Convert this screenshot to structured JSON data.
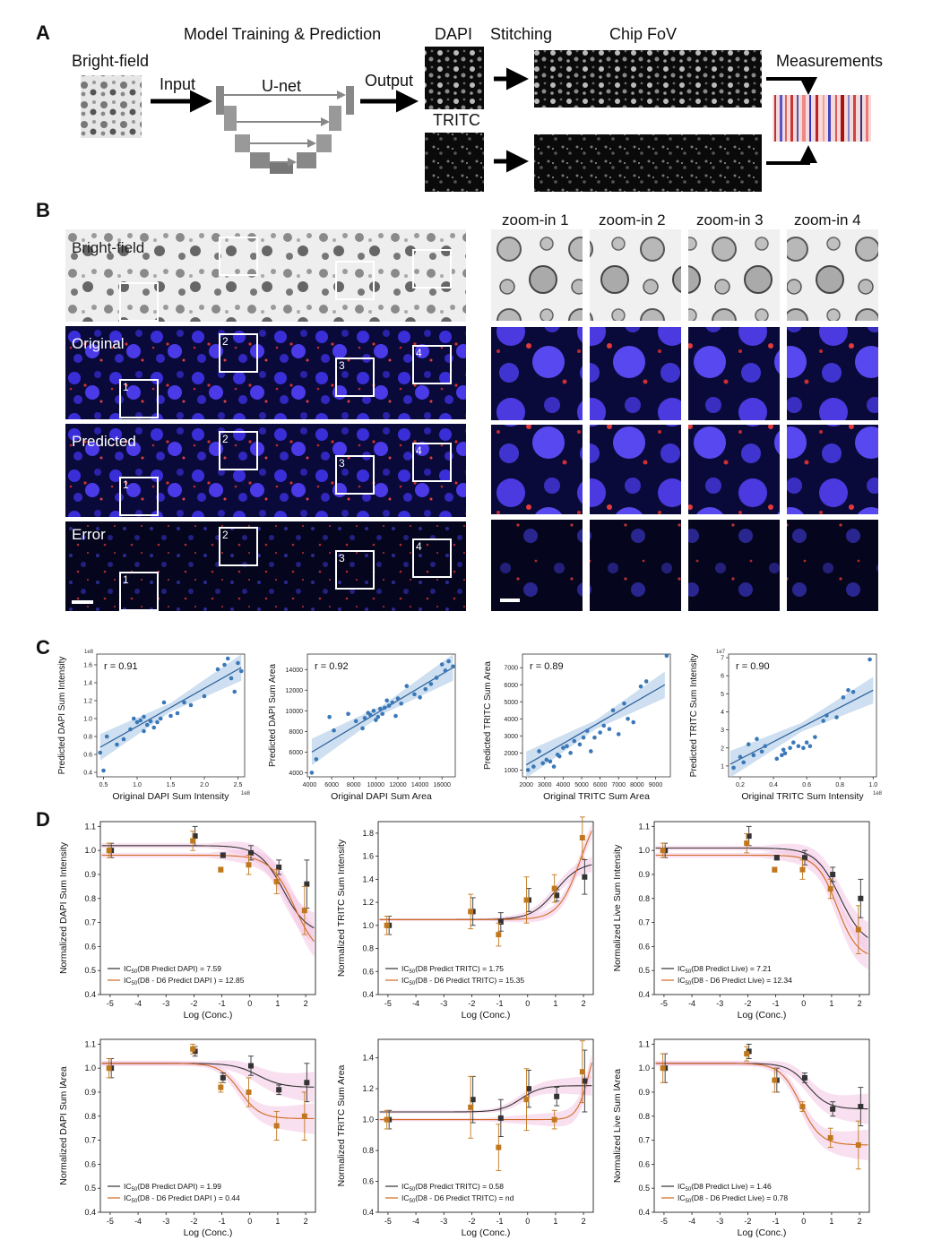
{
  "panels": {
    "a": "A",
    "b": "B",
    "c": "C",
    "d": "D"
  },
  "panel_a": {
    "model_title": "Model Training & Prediction",
    "brightfield": "Bright-field",
    "input": "Input",
    "unet": "U-net",
    "output": "Output",
    "dapi": "DAPI",
    "tritc": "TRITC",
    "stitching": "Stitching",
    "chip_fov": "Chip FoV",
    "measurements": "Measurements"
  },
  "panel_b": {
    "rows": [
      "Bright-field",
      "Original",
      "Predicted",
      "Error"
    ],
    "box_numbers": [
      "1",
      "2",
      "3",
      "4"
    ],
    "zoom_titles": [
      "zoom-in 1",
      "zoom-in 2",
      "zoom-in 3",
      "zoom-in 4"
    ]
  },
  "colors": {
    "scatter_point": "#3a78b8",
    "fit_band": "#b8d2ea",
    "d8_curve": "#333333",
    "d6_curve": "#d2691e",
    "d6_marker": "#c0781f",
    "error_band": "#f4c7e4",
    "fluor_bg": "#0a0a3a"
  },
  "chart_data": [
    {
      "type": "scatter",
      "id": "c1",
      "r_label": "r = 0.91",
      "xlabel": "Original DAPI Sum Intensity",
      "ylabel": "Predicted DAPI Sum Intensity",
      "x_exponent": "1e8",
      "y_exponent": "1e8",
      "xticks": [
        "0.5",
        "1.0",
        "1.5",
        "2.0",
        "2.5"
      ],
      "yticks": [
        "0.4",
        "0.6",
        "0.8",
        "1.0",
        "1.2",
        "1.4",
        "1.6"
      ],
      "xlim": [
        0.4,
        2.6
      ],
      "ylim": [
        0.35,
        1.72
      ],
      "fit": [
        [
          0.45,
          0.68
        ],
        [
          2.55,
          1.57
        ]
      ],
      "x": [
        0.45,
        0.5,
        0.55,
        0.7,
        0.8,
        0.9,
        0.95,
        1.0,
        1.05,
        1.1,
        1.1,
        1.15,
        1.2,
        1.25,
        1.3,
        1.35,
        1.4,
        1.5,
        1.6,
        1.7,
        1.8,
        2.0,
        2.2,
        2.3,
        2.35,
        2.4,
        2.45,
        2.5,
        2.55
      ],
      "y": [
        0.62,
        0.42,
        0.8,
        0.71,
        0.77,
        0.88,
        1.0,
        0.96,
        0.98,
        0.86,
        1.02,
        0.93,
        0.97,
        0.9,
        0.96,
        1.0,
        1.18,
        1.03,
        1.06,
        1.18,
        1.15,
        1.25,
        1.55,
        1.6,
        1.67,
        1.45,
        1.3,
        1.62,
        1.53
      ]
    },
    {
      "type": "scatter",
      "id": "c2",
      "r_label": "r = 0.92",
      "xlabel": "Original DAPI Sum Area",
      "ylabel": "Predicted DAPI Sum Area",
      "xticks": [
        "4000",
        "6000",
        "8000",
        "10000",
        "12000",
        "14000",
        "16000"
      ],
      "yticks": [
        "4000",
        "6000",
        "8000",
        "10000",
        "12000",
        "14000"
      ],
      "xlim": [
        3800,
        17200
      ],
      "ylim": [
        3600,
        15500
      ],
      "fit": [
        [
          4200,
          6000
        ],
        [
          17000,
          14200
        ]
      ],
      "x": [
        4200,
        4600,
        5800,
        6200,
        7500,
        8200,
        8800,
        9000,
        9300,
        9500,
        9800,
        10000,
        10200,
        10400,
        10600,
        10800,
        11000,
        11200,
        11500,
        11800,
        12000,
        12300,
        12800,
        13500,
        14000,
        14500,
        15000,
        15500,
        16000,
        16300,
        16600,
        17000
      ],
      "y": [
        4000,
        5300,
        9400,
        8100,
        9700,
        9000,
        8300,
        9300,
        9800,
        9600,
        10000,
        9100,
        9400,
        10200,
        9700,
        10300,
        11000,
        10500,
        10800,
        9500,
        11200,
        10700,
        12400,
        11600,
        11300,
        12100,
        12600,
        13200,
        14500,
        13900,
        14800,
        14300
      ]
    },
    {
      "type": "scatter",
      "id": "c3",
      "r_label": "r = 0.89",
      "xlabel": "Original TRITC Sum Area",
      "ylabel": "Predicted TRITC Sum Area",
      "xticks": [
        "2000",
        "3000",
        "4000",
        "5000",
        "6000",
        "7000",
        "8000",
        "9000"
      ],
      "yticks": [
        "1000",
        "2000",
        "3000",
        "4000",
        "5000",
        "6000",
        "7000"
      ],
      "xlim": [
        1800,
        9800
      ],
      "ylim": [
        600,
        7800
      ],
      "fit": [
        [
          2000,
          1300
        ],
        [
          9500,
          6000
        ]
      ],
      "x": [
        2100,
        2400,
        2700,
        2900,
        3100,
        3300,
        3500,
        3700,
        3800,
        4000,
        4200,
        4400,
        4600,
        4900,
        5100,
        5300,
        5500,
        5700,
        6000,
        6200,
        6500,
        6700,
        7000,
        7300,
        7500,
        7800,
        8200,
        8500,
        9600
      ],
      "y": [
        1000,
        1200,
        2100,
        1400,
        1600,
        1500,
        1200,
        1900,
        1800,
        2300,
        2400,
        2000,
        2700,
        2500,
        2900,
        3300,
        2100,
        2900,
        3200,
        3600,
        3400,
        4500,
        3100,
        4900,
        4000,
        3800,
        5900,
        6200,
        7700
      ]
    },
    {
      "type": "scatter",
      "id": "c4",
      "r_label": "r = 0.90",
      "xlabel": "Original TRITC Sum Intensity",
      "ylabel": "Predicted TRITC Sum Intensity",
      "x_exponent": "1e8",
      "y_exponent": "1e7",
      "xticks": [
        "0.2",
        "0.4",
        "0.6",
        "0.8",
        "1.0"
      ],
      "yticks": [
        "1",
        "2",
        "3",
        "4",
        "5",
        "6",
        "7"
      ],
      "xlim": [
        0.13,
        1.02
      ],
      "ylim": [
        0.4,
        7.2
      ],
      "fit": [
        [
          0.14,
          1.1
        ],
        [
          1.0,
          5.2
        ]
      ],
      "x": [
        0.16,
        0.2,
        0.22,
        0.25,
        0.28,
        0.3,
        0.33,
        0.35,
        0.42,
        0.45,
        0.46,
        0.47,
        0.5,
        0.52,
        0.55,
        0.58,
        0.6,
        0.62,
        0.65,
        0.7,
        0.72,
        0.78,
        0.82,
        0.85,
        0.88,
        0.98
      ],
      "y": [
        0.9,
        1.5,
        1.2,
        2.2,
        1.6,
        2.5,
        1.8,
        2.1,
        1.4,
        1.6,
        1.9,
        1.7,
        2.0,
        2.3,
        2.1,
        2.0,
        2.3,
        2.1,
        2.6,
        3.5,
        3.8,
        3.7,
        4.8,
        5.2,
        5.1,
        6.9
      ]
    },
    {
      "type": "line",
      "id": "d1",
      "ylabel": "Normalized DAPI Sum Intensity",
      "xlabel": "Log (Conc.)",
      "xticks": [
        -5,
        -4,
        -3,
        -2,
        -1,
        0,
        1,
        2
      ],
      "yticks": [
        "0.4",
        "0.5",
        "0.6",
        "0.7",
        "0.8",
        "0.9",
        "1.0",
        "1.1"
      ],
      "xlim": [
        -5.35,
        2.35
      ],
      "ylim": [
        0.4,
        1.12
      ],
      "series": [
        {
          "name": "IC50(D8 Predict DAPI) = 7.59",
          "legend_main": "IC",
          "legend_sub": "50",
          "legend_rest": "(D8 Predict DAPI) = 7.59",
          "color": "#333333",
          "x": [
            -5,
            -2,
            -1,
            0,
            1,
            2
          ],
          "y": [
            1.0,
            1.06,
            0.98,
            0.99,
            0.93,
            0.86
          ],
          "err": [
            0.03,
            0.04,
            0.01,
            0.03,
            0.03,
            0.1
          ],
          "curve": {
            "top": 1.02,
            "bottom": 0.65,
            "logic50": 1.2,
            "hill": 1.0
          }
        },
        {
          "name": "IC50(D8 - D6 Predict DAPI ) = 12.85",
          "legend_main": "IC",
          "legend_sub": "50",
          "legend_rest": "(D8 - D6 Predict DAPI ) = 12.85",
          "color": "#c0781f",
          "x": [
            -5,
            -2,
            -1,
            0,
            1,
            2
          ],
          "y": [
            1.0,
            1.04,
            0.92,
            0.94,
            0.87,
            0.75
          ],
          "err": [
            0.03,
            0.04,
            0.01,
            0.04,
            0.05,
            0.1
          ],
          "curve": {
            "top": 0.98,
            "bottom": 0.55,
            "logic50": 1.6,
            "hill": 1.0
          }
        }
      ]
    },
    {
      "type": "line",
      "id": "d2",
      "ylabel": "Normalized TRITC Sum Intensity",
      "xlabel": "Log (Conc.)",
      "xticks": [
        -5,
        -4,
        -3,
        -2,
        -1,
        0,
        1,
        2
      ],
      "yticks": [
        "0.4",
        "0.6",
        "0.8",
        "1.0",
        "1.2",
        "1.4",
        "1.6",
        "1.8"
      ],
      "xlim": [
        -5.35,
        2.35
      ],
      "ylim": [
        0.4,
        1.9
      ],
      "series": [
        {
          "name": "IC50(D8 Predict TRITC) = 1.75",
          "legend_main": "IC",
          "legend_sub": "50",
          "legend_rest": "(D8 Predict TRITC) = 1.75",
          "color": "#333333",
          "x": [
            -5,
            -2,
            -1,
            0,
            1,
            2
          ],
          "y": [
            1.0,
            1.12,
            1.03,
            1.22,
            1.26,
            1.42
          ],
          "err": [
            0.08,
            0.12,
            0.08,
            0.1,
            0.05,
            0.15
          ],
          "curve": {
            "top": 1.05,
            "bottom": 1.55,
            "logic50": 1.0,
            "hill": 1.0
          }
        },
        {
          "name": "IC50(D8 - D6 Predict TRITC) = 15.35",
          "legend_main": "IC",
          "legend_sub": "50",
          "legend_rest": "(D8 - D6 Predict TRITC) = 15.35",
          "color": "#c0781f",
          "x": [
            -5,
            -2,
            -1,
            0,
            1,
            2
          ],
          "y": [
            1.0,
            1.12,
            0.92,
            1.22,
            1.32,
            1.76
          ],
          "err": [
            0.08,
            0.15,
            0.1,
            0.2,
            0.12,
            0.18
          ],
          "curve": {
            "top": 1.05,
            "bottom": 2.1,
            "logic50": 1.9,
            "hill": 1.1
          }
        }
      ]
    },
    {
      "type": "line",
      "id": "d3",
      "ylabel": "Normalized Live Sum Intensity",
      "xlabel": "Log (Conc.)",
      "xticks": [
        -5,
        -4,
        -3,
        -2,
        -1,
        0,
        1,
        2
      ],
      "yticks": [
        "0.4",
        "0.5",
        "0.6",
        "0.7",
        "0.8",
        "0.9",
        "1.0",
        "1.1"
      ],
      "xlim": [
        -5.35,
        2.35
      ],
      "ylim": [
        0.4,
        1.12
      ],
      "series": [
        {
          "name": "IC50(D8 Predict Live) = 7.21",
          "legend_main": "IC",
          "legend_sub": "50",
          "legend_rest": "(D8 Predict Live) = 7.21",
          "color": "#333333",
          "x": [
            -5,
            -2,
            -1,
            0,
            1,
            2
          ],
          "y": [
            1.0,
            1.06,
            0.97,
            0.97,
            0.9,
            0.8
          ],
          "err": [
            0.03,
            0.04,
            0.01,
            0.03,
            0.03,
            0.08
          ],
          "curve": {
            "top": 1.01,
            "bottom": 0.6,
            "logic50": 1.3,
            "hill": 1.0
          }
        },
        {
          "name": "IC50(D8 - D6 Predict Live) = 12.34",
          "legend_main": "IC",
          "legend_sub": "50",
          "legend_rest": "(D8 - D6 Predict Live) = 12.34",
          "color": "#c0781f",
          "x": [
            -5,
            -2,
            -1,
            0,
            1,
            2
          ],
          "y": [
            1.0,
            1.03,
            0.92,
            0.92,
            0.84,
            0.67
          ],
          "err": [
            0.03,
            0.04,
            0.01,
            0.04,
            0.04,
            0.1
          ],
          "curve": {
            "top": 0.98,
            "bottom": 0.55,
            "logic50": 1.2,
            "hill": 1.2
          }
        }
      ]
    },
    {
      "type": "line",
      "id": "d4",
      "ylabel": "Normalized  DAPI Sum lArea",
      "xlabel": "Log (Conc.)",
      "xticks": [
        -5,
        -4,
        -3,
        -2,
        -1,
        0,
        1,
        2
      ],
      "yticks": [
        "0.4",
        "0.5",
        "0.6",
        "0.7",
        "0.8",
        "0.9",
        "1.0",
        "1.1"
      ],
      "xlim": [
        -5.35,
        2.35
      ],
      "ylim": [
        0.4,
        1.12
      ],
      "series": [
        {
          "name": "IC50(D8 Predict DAPI) = 1.99",
          "legend_main": "IC",
          "legend_sub": "50",
          "legend_rest": "(D8 Predict DAPI) = 1.99",
          "color": "#333333",
          "x": [
            -5,
            -2,
            -1,
            0,
            1,
            2
          ],
          "y": [
            1.0,
            1.07,
            0.96,
            1.01,
            0.91,
            0.94
          ],
          "err": [
            0.04,
            0.02,
            0.02,
            0.04,
            0.02,
            0.08
          ],
          "curve": {
            "top": 1.02,
            "bottom": 0.92,
            "logic50": 0.3,
            "hill": 1.0
          }
        },
        {
          "name": "IC50(D8 - D6 Predict DAPI ) = 0.44",
          "legend_main": "IC",
          "legend_sub": "50",
          "legend_rest": "(D8 - D6 Predict DAPI ) = 0.44",
          "color": "#c0781f",
          "x": [
            -5,
            -2,
            -1,
            0,
            1,
            2
          ],
          "y": [
            1.0,
            1.08,
            0.92,
            0.9,
            0.76,
            0.8
          ],
          "err": [
            0.04,
            0.02,
            0.02,
            0.06,
            0.06,
            0.1
          ],
          "curve": {
            "top": 1.02,
            "bottom": 0.79,
            "logic50": -0.36,
            "hill": 1.2
          }
        }
      ]
    },
    {
      "type": "line",
      "id": "d5",
      "ylabel": "Normalized TRITC Sum Area",
      "xlabel": "Log (Conc.)",
      "xticks": [
        -5,
        -4,
        -3,
        -2,
        -1,
        0,
        1,
        2
      ],
      "yticks": [
        "0.4",
        "0.6",
        "0.8",
        "1.0",
        "1.2",
        "1.4"
      ],
      "xlim": [
        -5.35,
        2.35
      ],
      "ylim": [
        0.4,
        1.52
      ],
      "series": [
        {
          "name": "IC50(D8 Predict TRITC) = 0.58",
          "legend_main": "IC",
          "legend_sub": "50",
          "legend_rest": "(D8 Predict TRITC) = 0.58",
          "color": "#333333",
          "x": [
            -5,
            -2,
            -1,
            0,
            1,
            2
          ],
          "y": [
            1.0,
            1.13,
            1.01,
            1.2,
            1.15,
            1.25
          ],
          "err": [
            0.06,
            0.15,
            0.12,
            0.12,
            0.06,
            0.2
          ],
          "curve": {
            "top": 1.05,
            "bottom": 1.22,
            "logic50": -0.24,
            "hill": 1.2
          }
        },
        {
          "name": "IC50(D8 - D6 Predict TRITC) = nd",
          "legend_main": "IC",
          "legend_sub": "50",
          "legend_rest": "(D8 - D6 Predict TRITC) = nd",
          "color": "#c0781f",
          "x": [
            -5,
            -2,
            -1,
            0,
            1,
            2
          ],
          "y": [
            1.0,
            1.08,
            0.82,
            1.13,
            1.0,
            1.31
          ],
          "err": [
            0.06,
            0.2,
            0.15,
            0.2,
            0.06,
            0.2
          ],
          "curve": {
            "top": 1.0,
            "bottom": 1.6,
            "logic50": 2.2,
            "hill": 2.0
          }
        }
      ]
    },
    {
      "type": "line",
      "id": "d6",
      "ylabel": "Normalized Live Sum lArea",
      "xlabel": "Log (Conc.)",
      "xticks": [
        -5,
        -4,
        -3,
        -2,
        -1,
        0,
        1,
        2
      ],
      "yticks": [
        "0.4",
        "0.5",
        "0.6",
        "0.7",
        "0.8",
        "0.9",
        "1.0",
        "1.1"
      ],
      "xlim": [
        -5.35,
        2.35
      ],
      "ylim": [
        0.4,
        1.12
      ],
      "series": [
        {
          "name": "IC50(D8 Predict Live) = 1.46",
          "legend_main": "IC",
          "legend_sub": "50",
          "legend_rest": "(D8 Predict Live) = 1.46",
          "color": "#333333",
          "x": [
            -5,
            -2,
            -1,
            0,
            1,
            2
          ],
          "y": [
            1.0,
            1.07,
            0.95,
            0.96,
            0.83,
            0.84
          ],
          "err": [
            0.06,
            0.03,
            0.05,
            0.02,
            0.03,
            0.08
          ],
          "curve": {
            "top": 1.02,
            "bottom": 0.83,
            "logic50": 0.16,
            "hill": 1.2
          }
        },
        {
          "name": "IC50(D8 - D6 Predict Live) = 0.78",
          "legend_main": "IC",
          "legend_sub": "50",
          "legend_rest": "(D8 - D6 Predict Live) = 0.78",
          "color": "#c0781f",
          "x": [
            -5,
            -2,
            -1,
            0,
            1,
            2
          ],
          "y": [
            1.0,
            1.06,
            0.95,
            0.84,
            0.71,
            0.68
          ],
          "err": [
            0.06,
            0.03,
            0.05,
            0.02,
            0.04,
            0.1
          ],
          "curve": {
            "top": 1.02,
            "bottom": 0.68,
            "logic50": -0.11,
            "hill": 1.2
          }
        }
      ]
    }
  ]
}
